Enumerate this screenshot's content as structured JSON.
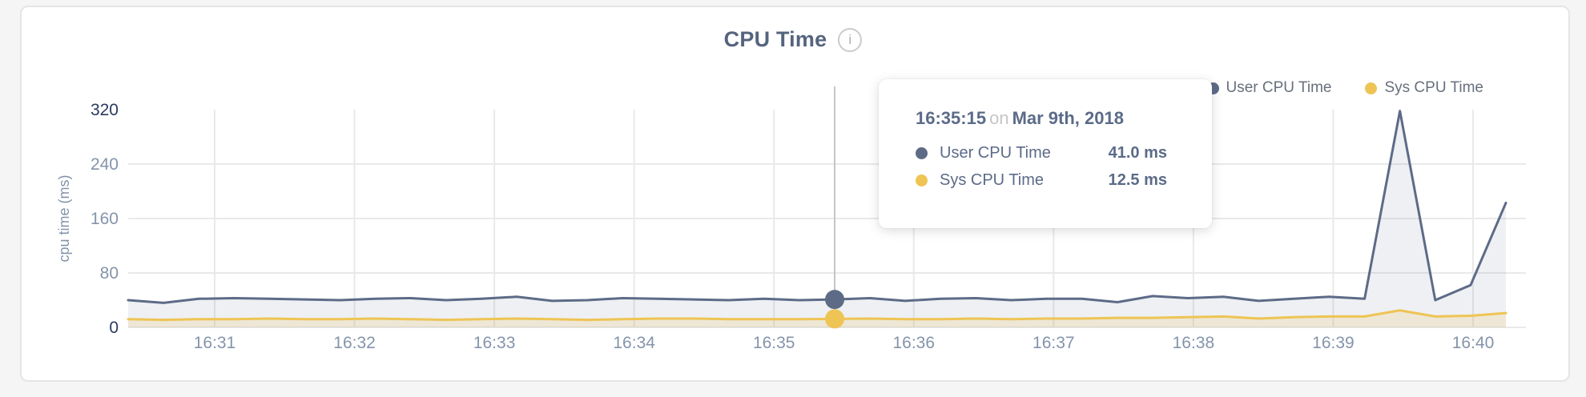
{
  "page": {
    "background": "#f5f5f6"
  },
  "card": {
    "title": "CPU Time"
  },
  "legend": {
    "items": [
      {
        "label": "User CPU Time",
        "color": "#5d6b87"
      },
      {
        "label": "Sys CPU Time",
        "color": "#eec454"
      }
    ]
  },
  "tooltip": {
    "time": "16:35:15",
    "conjunction": "on",
    "date": "Mar 9th, 2018",
    "rows": [
      {
        "label": "User CPU Time",
        "value": "41.0 ms",
        "color": "#5d6b87"
      },
      {
        "label": "Sys CPU Time",
        "value": "12.5 ms",
        "color": "#eec454"
      }
    ]
  },
  "chart_data": {
    "type": "area",
    "title": "CPU Time",
    "ylabel": "cpu time (ms)",
    "ylim": [
      0,
      320
    ],
    "y_ticks": [
      0,
      80,
      160,
      240,
      320
    ],
    "x_ticks": [
      "16:31",
      "16:32",
      "16:33",
      "16:34",
      "16:35",
      "16:36",
      "16:37",
      "16:38",
      "16:39",
      "16:40"
    ],
    "grid": true,
    "legend_position": "top-right",
    "series": [
      {
        "name": "User CPU Time",
        "color": "#5d6b87",
        "fill": "rgba(93,107,135,0.10)",
        "values": [
          40,
          36,
          42,
          43,
          42,
          41,
          40,
          42,
          43,
          40,
          42,
          45,
          39,
          40,
          43,
          42,
          41,
          40,
          42,
          40,
          41,
          43,
          39,
          42,
          43,
          40,
          42,
          42,
          37,
          46,
          43,
          45,
          39,
          42,
          45,
          42,
          318,
          40,
          62,
          183
        ]
      },
      {
        "name": "Sys CPU Time",
        "color": "#eec454",
        "fill": "rgba(238,196,84,0.18)",
        "values": [
          12,
          11,
          12,
          12,
          13,
          12,
          12,
          13,
          12,
          11,
          12,
          13,
          12,
          11,
          12,
          13,
          13,
          12,
          12,
          12,
          12.5,
          13,
          12,
          12,
          13,
          12,
          13,
          13,
          14,
          14,
          15,
          16,
          13,
          15,
          16,
          16,
          25,
          16,
          17,
          21
        ]
      }
    ],
    "selected": {
      "index": 20,
      "time": "16:35:15",
      "date": "Mar 9th, 2018",
      "values_ms": [
        41.0,
        12.5
      ]
    },
    "axis_colors": {
      "tick_emphasis": "#2a3a5f",
      "tick_normal": "#8494aa",
      "gridline": "#e9e9ea",
      "crosshair": "#c4c4c4"
    }
  }
}
